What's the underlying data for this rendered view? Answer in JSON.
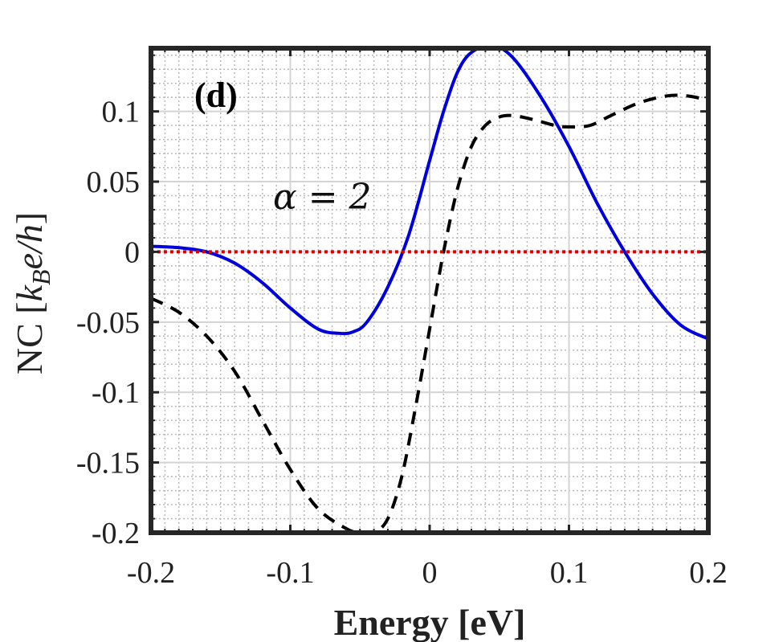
{
  "chart_data": {
    "type": "line",
    "panel_label": "(d)",
    "annotation": "α = 2",
    "xlabel": "Energy [eV]",
    "ylabel": "NC [k_B e/h]",
    "ylabel_parts": {
      "prefix": "NC ",
      "open": "[",
      "k": "k",
      "sub": "B",
      "rest": "e/h",
      "close": "]"
    },
    "xlim": [
      -0.2,
      0.2
    ],
    "ylim": [
      -0.2,
      0.145
    ],
    "xticks": [
      -0.2,
      -0.1,
      0,
      0.1,
      0.2
    ],
    "xtick_labels": [
      "-0.2",
      "-0.1",
      "0",
      "0.1",
      "0.2"
    ],
    "yticks": [
      -0.2,
      -0.15,
      -0.1,
      -0.05,
      0,
      0.05,
      0.1
    ],
    "ytick_labels": [
      "-0.2",
      "-0.15",
      "-0.1",
      "-0.05",
      "0",
      "0.05",
      "0.1"
    ],
    "grid": true,
    "minor_grid": true,
    "series": [
      {
        "name": "solid-blue",
        "color": "#0000dd",
        "style": "solid",
        "x": [
          -0.2,
          -0.18,
          -0.16,
          -0.14,
          -0.12,
          -0.1,
          -0.08,
          -0.065,
          -0.055,
          -0.045,
          -0.03,
          -0.015,
          0,
          0.01,
          0.02,
          0.03,
          0.045,
          0.06,
          0.08,
          0.1,
          0.12,
          0.14,
          0.16,
          0.18,
          0.2
        ],
        "values": [
          0.004,
          0.003,
          0.0,
          -0.008,
          -0.022,
          -0.04,
          -0.055,
          -0.058,
          -0.057,
          -0.05,
          -0.025,
          0.012,
          0.065,
          0.1,
          0.128,
          0.142,
          0.147,
          0.138,
          0.11,
          0.075,
          0.035,
          0.0,
          -0.03,
          -0.052,
          -0.062
        ]
      },
      {
        "name": "dashed-black",
        "color": "#000000",
        "style": "dashed",
        "x": [
          -0.2,
          -0.18,
          -0.16,
          -0.14,
          -0.12,
          -0.1,
          -0.08,
          -0.06,
          -0.05,
          -0.04,
          -0.03,
          -0.02,
          -0.01,
          0,
          0.01,
          0.02,
          0.03,
          0.04,
          0.05,
          0.06,
          0.075,
          0.09,
          0.1,
          0.115,
          0.13,
          0.15,
          0.17,
          0.185,
          0.2
        ],
        "values": [
          -0.033,
          -0.043,
          -0.06,
          -0.085,
          -0.12,
          -0.155,
          -0.183,
          -0.197,
          -0.2,
          -0.2,
          -0.19,
          -0.16,
          -0.11,
          -0.055,
          0.0,
          0.045,
          0.075,
          0.09,
          0.096,
          0.097,
          0.094,
          0.09,
          0.089,
          0.09,
          0.097,
          0.106,
          0.111,
          0.111,
          0.108
        ]
      },
      {
        "name": "dotted-red",
        "color": "#dd0000",
        "style": "dotted",
        "x": [
          -0.2,
          0.2
        ],
        "values": [
          0.0,
          0.0
        ]
      }
    ]
  }
}
